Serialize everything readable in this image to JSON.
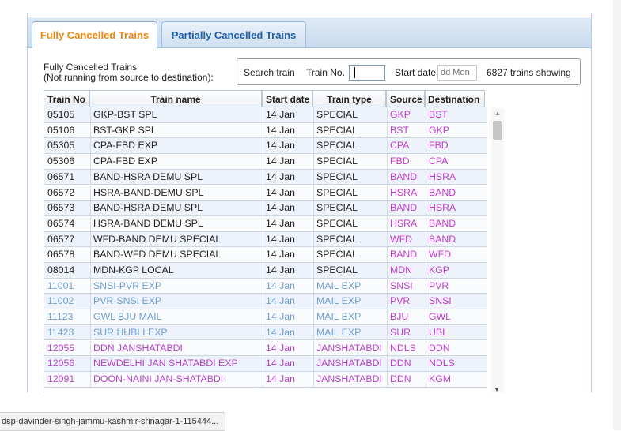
{
  "tabs": {
    "full": "Fully Cancelled Trains",
    "partial": "Partially Cancelled Trains"
  },
  "header": {
    "line1": "Fully Cancelled Trains",
    "line2": "(Not running from source to destination):"
  },
  "search": {
    "search_label": "Search train",
    "train_no_label": "Train No.",
    "train_no_value": "",
    "start_date_label": "Start date",
    "date_placeholder": "dd Mon",
    "count_text": "6827 trains showing"
  },
  "columns": {
    "train_no": "Train No",
    "train_name": "Train name",
    "start_date": "Start date",
    "train_type": "Train type",
    "source": "Source",
    "destination": "Destination"
  },
  "colors": {
    "special": "#222222",
    "mail": "#6f9fd3",
    "shatabdi": "#b542c8",
    "station": "#c43bd0",
    "tab_active": "#e8870a",
    "tab_inactive": "#1f5fa8"
  },
  "rows": [
    {
      "no": "05105",
      "name": "GKP-BST SPL",
      "date": "14 Jan",
      "type": "SPECIAL",
      "src": "GKP",
      "dst": "BST",
      "style": "special"
    },
    {
      "no": "05106",
      "name": "BST-GKP SPL",
      "date": "14 Jan",
      "type": "SPECIAL",
      "src": "BST",
      "dst": "GKP",
      "style": "special"
    },
    {
      "no": "05305",
      "name": "CPA-FBD EXP",
      "date": "14 Jan",
      "type": "SPECIAL",
      "src": "CPA",
      "dst": "FBD",
      "style": "special"
    },
    {
      "no": "05306",
      "name": "CPA-FBD EXP",
      "date": "14 Jan",
      "type": "SPECIAL",
      "src": "FBD",
      "dst": "CPA",
      "style": "special"
    },
    {
      "no": "06571",
      "name": "BAND-HSRA DEMU SPL",
      "date": "14 Jan",
      "type": "SPECIAL",
      "src": "BAND",
      "dst": "HSRA",
      "style": "special"
    },
    {
      "no": "06572",
      "name": "HSRA-BAND-DEMU SPL",
      "date": "14 Jan",
      "type": "SPECIAL",
      "src": "HSRA",
      "dst": "BAND",
      "style": "special"
    },
    {
      "no": "06573",
      "name": "BAND-HSRA DEMU SPL",
      "date": "14 Jan",
      "type": "SPECIAL",
      "src": "BAND",
      "dst": "HSRA",
      "style": "special"
    },
    {
      "no": "06574",
      "name": "HSRA-BAND DEMU SPL",
      "date": "14 Jan",
      "type": "SPECIAL",
      "src": "HSRA",
      "dst": "BAND",
      "style": "special"
    },
    {
      "no": "06577",
      "name": "WFD-BAND DEMU SPECIAL",
      "date": "14 Jan",
      "type": "SPECIAL",
      "src": "WFD",
      "dst": "BAND",
      "style": "special"
    },
    {
      "no": "06578",
      "name": "BAND-WFD DEMU SPECIAL",
      "date": "14 Jan",
      "type": "SPECIAL",
      "src": "BAND",
      "dst": "WFD",
      "style": "special"
    },
    {
      "no": "08014",
      "name": "MDN-KGP LOCAL",
      "date": "14 Jan",
      "type": "SPECIAL",
      "src": "MDN",
      "dst": "KGP",
      "style": "special"
    },
    {
      "no": "11001",
      "name": "SNSI-PVR EXP",
      "date": "14 Jan",
      "type": "MAIL EXP",
      "src": "SNSI",
      "dst": "PVR",
      "style": "mail"
    },
    {
      "no": "11002",
      "name": "PVR-SNSI EXP",
      "date": "14 Jan",
      "type": "MAIL EXP",
      "src": "PVR",
      "dst": "SNSI",
      "style": "mail"
    },
    {
      "no": "11123",
      "name": "GWL BJU MAIL",
      "date": "14 Jan",
      "type": "MAIL EXP",
      "src": "BJU",
      "dst": "GWL",
      "style": "mail"
    },
    {
      "no": "11423",
      "name": "SUR HUBLI EXP",
      "date": "14 Jan",
      "type": "MAIL EXP",
      "src": "SUR",
      "dst": "UBL",
      "style": "mail"
    },
    {
      "no": "12055",
      "name": "DDN JANSHATABDI",
      "date": "14 Jan",
      "type": "JANSHATABDI",
      "src": "NDLS",
      "dst": "DDN",
      "style": "shatabdi"
    },
    {
      "no": "12056",
      "name": "NEWDELHI JAN SHATABDI EXP",
      "date": "14 Jan",
      "type": "JANSHATABDI",
      "src": "DDN",
      "dst": "NDLS",
      "style": "shatabdi"
    },
    {
      "no": "12091",
      "name": "DOON-NAINI JAN-SHATABDI",
      "date": "14 Jan",
      "type": "JANSHATABDI",
      "src": "DDN",
      "dst": "KGM",
      "style": "shatabdi"
    }
  ],
  "status_bar": {
    "url": "dsp-davinder-singh-jammu-kashmir-srinagar-1-115444..."
  }
}
